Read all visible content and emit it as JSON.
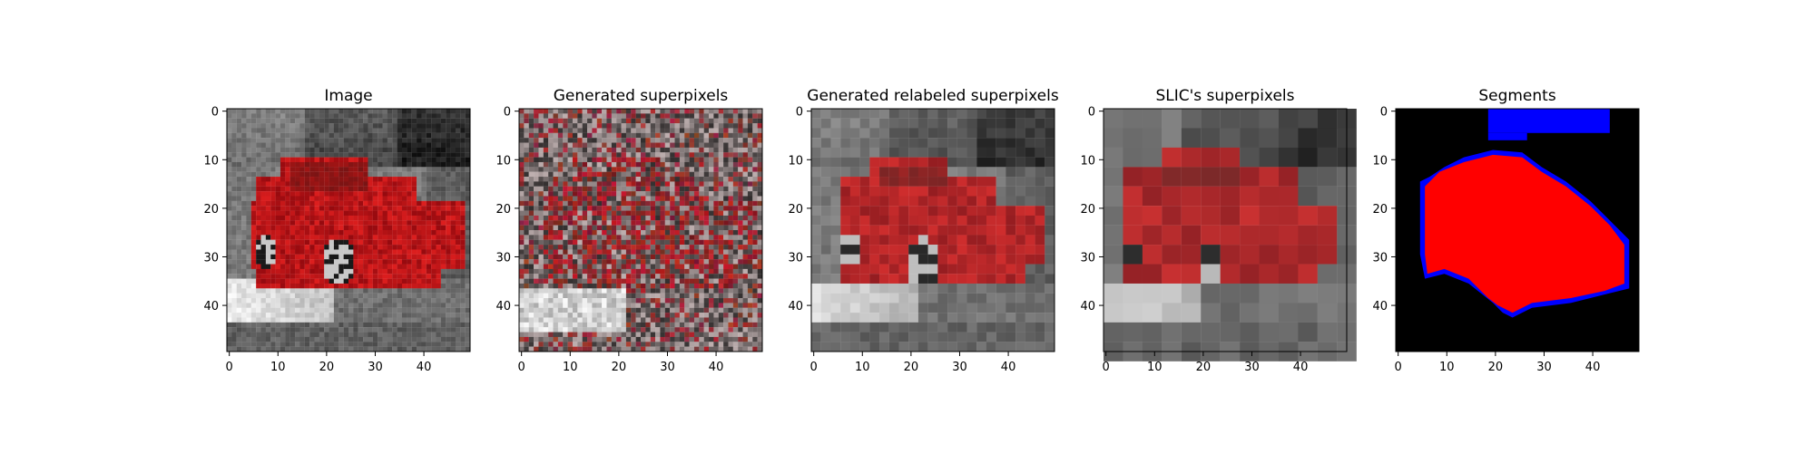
{
  "figure": {
    "panels": [
      {
        "title": "Image",
        "type": "image_raster",
        "content": "grayscale street photo with red car"
      },
      {
        "title": "Generated superpixels",
        "type": "image_raster",
        "content": "shuffled grayscale/red superpixel patches"
      },
      {
        "title": "Generated relabeled superpixels",
        "type": "image_raster",
        "content": "superpixel-averaged car image"
      },
      {
        "title": "SLIC's superpixels",
        "type": "image_raster",
        "content": "SLIC superpixel-averaged car image"
      },
      {
        "title": "Segments",
        "type": "image_raster",
        "content": "segmentation mask: black background, red car region, blue top region and blue boundary pixels"
      }
    ],
    "colors": {
      "car_red": "#b01010",
      "segment_red": "#ff0000",
      "segment_blue": "#0000ff",
      "background_black": "#000000"
    }
  },
  "chart_data": [
    {
      "type": "heatmap",
      "title": "Image",
      "xlim": [
        0,
        49
      ],
      "ylim": [
        49,
        0
      ],
      "xticks": [
        0,
        10,
        20,
        30,
        40
      ],
      "yticks": [
        0,
        10,
        20,
        30,
        40
      ],
      "grid": false
    },
    {
      "type": "heatmap",
      "title": "Generated superpixels",
      "xlim": [
        0,
        49
      ],
      "ylim": [
        49,
        0
      ],
      "xticks": [
        0,
        10,
        20,
        30,
        40
      ],
      "yticks": [
        0,
        10,
        20,
        30,
        40
      ],
      "grid": false
    },
    {
      "type": "heatmap",
      "title": "Generated relabeled superpixels",
      "xlim": [
        0,
        49
      ],
      "ylim": [
        49,
        0
      ],
      "xticks": [
        0,
        10,
        20,
        30,
        40
      ],
      "yticks": [
        0,
        10,
        20,
        30,
        40
      ],
      "grid": false
    },
    {
      "type": "heatmap",
      "title": "SLIC's superpixels",
      "xlim": [
        0,
        49
      ],
      "ylim": [
        49,
        0
      ],
      "xticks": [
        0,
        10,
        20,
        30,
        40
      ],
      "yticks": [
        0,
        10,
        20,
        30,
        40
      ],
      "grid": false
    },
    {
      "type": "heatmap",
      "title": "Segments",
      "xlim": [
        0,
        49
      ],
      "ylim": [
        49,
        0
      ],
      "xticks": [
        0,
        10,
        20,
        30,
        40
      ],
      "yticks": [
        0,
        10,
        20,
        30,
        40
      ],
      "grid": false
    }
  ]
}
